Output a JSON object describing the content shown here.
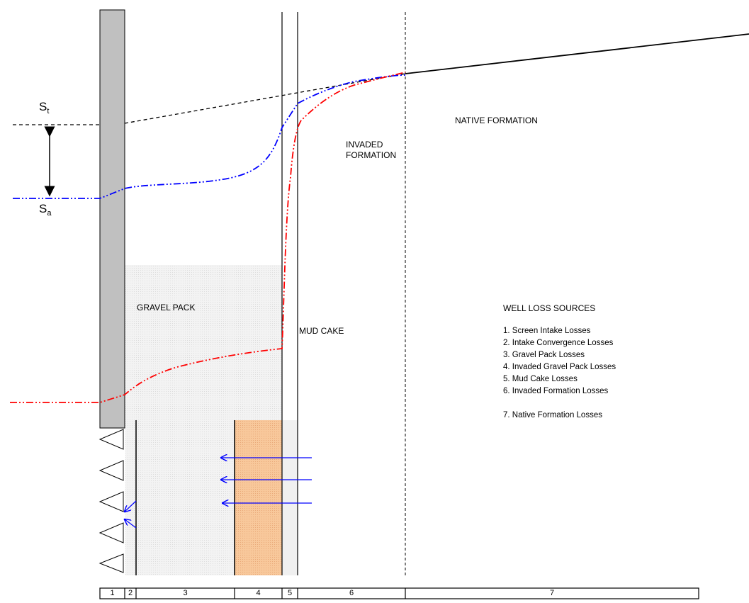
{
  "labels": {
    "st_symbol": "S",
    "st_sub": "t",
    "sa_symbol": "S",
    "sa_sub": "a",
    "native_formation": "NATIVE FORMATION",
    "invaded_formation_line1": "INVADED",
    "invaded_formation_line2": "FORMATION",
    "gravel_pack": "GRAVEL PACK",
    "mud_cake": "MUD CAKE",
    "well_loss_title": "WELL LOSS SOURCES"
  },
  "loss_sources": [
    "1. Screen Intake Losses",
    "2. Intake Convergence Losses",
    "3. Gravel Pack Losses",
    "4. Invaded Gravel Pack Losses",
    "5. Mud Cake Losses",
    "6. Invaded Formation Losses",
    "",
    "7. Native Formation Losses"
  ],
  "zones": [
    "1",
    "2",
    "3",
    "4",
    "5",
    "6",
    "7"
  ],
  "colors": {
    "casing": "#c0c0c0",
    "gravel_pack": "#f0f0f0",
    "invaded_gravel": "#f7c79a",
    "blue_curve": "#0000ff",
    "red_curve": "#ff0000",
    "lines": "#000000"
  }
}
